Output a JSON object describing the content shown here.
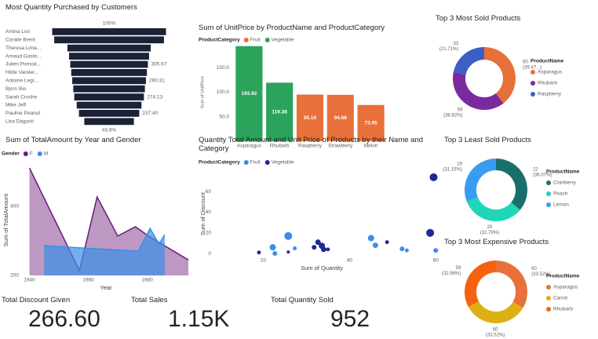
{
  "chart_data": [
    {
      "type": "funnel",
      "title": "Most Quantity Purchased by Customers",
      "color": "#1c2236",
      "categories": [
        "Amina Loo",
        "Coralie Brent",
        "Theresa Lima...",
        "Arnaud Gaste...",
        "Julien Pomod...",
        "Hilde Vander...",
        "Antoine Legr...",
        "Bjorn Bio",
        "Sarah Croche",
        "Mike Jeff",
        "Pauline Peanut",
        "Lisa Dagusti"
      ],
      "values": [
        448,
        432,
        328,
        315,
        305.67,
        298,
        290.31,
        282,
        274.13,
        255,
        237.4,
        195.3
      ],
      "value_labels": [
        null,
        null,
        null,
        null,
        "305.67",
        null,
        "290.31",
        null,
        "274.13",
        null,
        "237.40",
        null
      ],
      "annotations": [
        "100%",
        "43.6%"
      ]
    },
    {
      "type": "bar",
      "title": "Sum of UnitPrice by ProductName and ProductCategory",
      "legend_title": "ProductCategory",
      "categories": [
        "Asparagus",
        "Rhubarb",
        "Raspberry",
        "Strawberry",
        "Melon"
      ],
      "series": [
        {
          "name": "Fruit",
          "color": "#e8703a",
          "values": [
            null,
            null,
            95.16,
            94.68,
            73.95
          ]
        },
        {
          "name": "Vegetable",
          "color": "#2ba35a",
          "values": [
            193.92,
            119.36,
            null,
            null,
            null
          ]
        }
      ],
      "ylabel": "Sum of UnitPrice",
      "ylim": [
        0,
        200
      ],
      "yticks": [
        {
          "value": 50,
          "label": "50.0"
        },
        {
          "value": 100,
          "label": "100.0"
        },
        {
          "value": 150,
          "label": "150.0"
        }
      ]
    },
    {
      "type": "area",
      "title": "Sum of TotalAmount by Year and Gender",
      "legend_title": "Gender",
      "series": [
        {
          "name": "F",
          "color": "#6a1b7a",
          "x": [
            1940,
            1957,
            1963,
            1970,
            1976,
            1981,
            1994
          ],
          "values": [
            511,
            214,
            427,
            314,
            341,
            311,
            245
          ]
        },
        {
          "name": "M",
          "color": "#3a8ee6",
          "x": [
            1945,
            1977,
            1981,
            1984,
            1986
          ],
          "values": [
            286,
            270,
            336,
            291,
            318
          ]
        }
      ],
      "xlabel": "Year",
      "ylabel": "Sum of TotalAmount",
      "xlim": [
        1938,
        1994
      ],
      "xticks": [
        1940,
        1960,
        1980
      ],
      "ylim": [
        200,
        520
      ],
      "yticks": [
        200,
        400
      ]
    },
    {
      "type": "scatter",
      "title": "Quantity Total Amount and Unit Price of Products by their Name and Category",
      "legend_title": "ProductCategory",
      "series": [
        {
          "name": "Fruit",
          "color": "#3a8ee6",
          "x": [
            25.8,
            22.2,
            22.7,
            27.3,
            45,
            46,
            52.2,
            53.3,
            60
          ],
          "values": [
            17,
            6,
            0,
            5,
            15,
            8,
            4.5,
            3,
            3
          ],
          "sizes": [
            25,
            16,
            9,
            6,
            16,
            12,
            9,
            6,
            9
          ]
        },
        {
          "name": "Vegetable",
          "color": "#1e2a96",
          "x": [
            59.5,
            58.7,
            19,
            25.8,
            32.7,
            33.6,
            34,
            31.8,
            35,
            48.7
          ],
          "values": [
            74,
            20,
            1,
            1.5,
            11,
            7.5,
            4,
            6,
            4,
            11
          ],
          "sizes": [
            25,
            25,
            6,
            4,
            12,
            16,
            12,
            9,
            6,
            6
          ]
        }
      ],
      "xlabel": "Sum of Quantity",
      "ylabel": "Sum of Discount",
      "xlim": [
        9,
        60.5
      ],
      "xticks": [
        20,
        40,
        60
      ],
      "ylim": [
        -3,
        80
      ],
      "yticks": [
        0,
        20,
        40,
        60
      ]
    },
    {
      "type": "donut",
      "title": "Top 3 Most Sold Products",
      "legend_title": "ProductName",
      "categories": [
        "Asparagus",
        "Rhubarb",
        "Raspberry"
      ],
      "colors": [
        "#e8703a",
        "#7b2a9e",
        "#3b5fc4"
      ],
      "values": [
        60,
        59,
        33
      ],
      "percent_labels": [
        "(39.47...)",
        "(38.82%)",
        "(21.71%)"
      ]
    },
    {
      "type": "donut",
      "title": "Top 3 Least Sold Products",
      "legend_title": "ProductName",
      "categories": [
        "Cranberry",
        "Peach",
        "Lemon"
      ],
      "colors": [
        "#1b6f6a",
        "#1fd6b8",
        "#3a9cf0"
      ],
      "values": [
        22,
        20,
        19
      ],
      "percent_labels": [
        "(36.07%)",
        "(32.79%)",
        "(31.15%)"
      ]
    },
    {
      "type": "donut",
      "title": "Top 3 Most Expensive Products",
      "legend_title": "ProductName",
      "categories": [
        "Asparagus",
        "Carrot",
        "Rhubarb"
      ],
      "colors": [
        "#e8703a",
        "#dcb012",
        "#f5620f"
      ],
      "values": [
        60,
        60,
        59
      ],
      "percent_labels": [
        "(33.52%)",
        "(33.52%)",
        "(32.96%)"
      ]
    }
  ],
  "cards": [
    {
      "title": "Total Discount Given",
      "value": "266.60"
    },
    {
      "title": "Total Sales",
      "value": "1.15K"
    },
    {
      "title": "Total Quantity Sold",
      "value": "952"
    }
  ]
}
